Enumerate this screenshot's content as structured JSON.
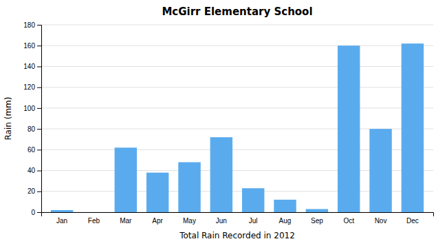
{
  "chart_data": {
    "type": "bar",
    "title": "McGirr Elementary School",
    "xlabel": "Total Rain Recorded in 2012",
    "ylabel": "Rain (mm)",
    "categories": [
      "Jan",
      "Feb",
      "Mar",
      "Apr",
      "May",
      "Jun",
      "Jul",
      "Aug",
      "Sep",
      "Oct",
      "Nov",
      "Dec"
    ],
    "values": [
      2,
      0,
      62,
      38,
      48,
      72,
      23,
      12,
      3,
      160,
      80,
      162
    ],
    "color": "#5aabee",
    "ylim": [
      0,
      180
    ],
    "yticks": [
      0,
      20,
      40,
      60,
      80,
      100,
      120,
      140,
      160,
      180
    ],
    "grid": true
  }
}
